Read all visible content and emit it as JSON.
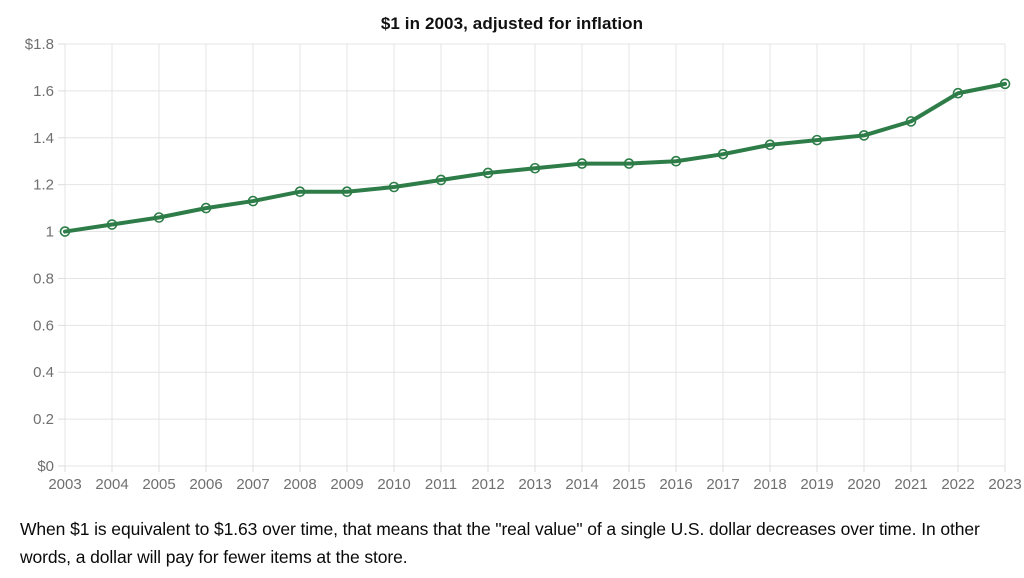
{
  "header": {
    "title": "$1 in 2003, adjusted for inflation"
  },
  "caption": "When $1 is equivalent to $1.63 over time, that means that the \"real value\" of a single U.S. dollar decreases over time. In other words, a dollar will pay for fewer items at the store.",
  "colors": {
    "line": "#2e7d49",
    "marker_fill": "#ffffff",
    "grid": "#e4e4e4",
    "tick": "#dcdcdc",
    "axis_label": "#6f6f6f",
    "title": "#111111",
    "caption": "#0a0a0a",
    "background": "#ffffff"
  },
  "chart_data": {
    "type": "line",
    "title": "$1 in 2003, adjusted for inflation",
    "x": [
      2003,
      2004,
      2005,
      2006,
      2007,
      2008,
      2009,
      2010,
      2011,
      2012,
      2013,
      2014,
      2015,
      2016,
      2017,
      2018,
      2019,
      2020,
      2021,
      2022,
      2023
    ],
    "values": [
      1.0,
      1.03,
      1.06,
      1.1,
      1.13,
      1.17,
      1.17,
      1.19,
      1.22,
      1.25,
      1.27,
      1.29,
      1.29,
      1.3,
      1.33,
      1.37,
      1.39,
      1.41,
      1.47,
      1.59,
      1.63
    ],
    "xlabel": "",
    "ylabel": "",
    "ylim": [
      0,
      1.8
    ],
    "y_ticks": [
      0,
      0.2,
      0.4,
      0.6,
      0.8,
      1.0,
      1.2,
      1.4,
      1.6,
      1.8
    ],
    "y_tick_labels": [
      "$0",
      "0.2",
      "0.4",
      "0.6",
      "0.8",
      "1",
      "1.2",
      "1.4",
      "1.6",
      "$1.8"
    ],
    "x_tick_labels": [
      "2003",
      "2004",
      "2005",
      "2006",
      "2007",
      "2008",
      "2009",
      "2010",
      "2011",
      "2012",
      "2013",
      "2014",
      "2015",
      "2016",
      "2017",
      "2018",
      "2019",
      "2020",
      "2021",
      "2022",
      "2023"
    ],
    "grid": true,
    "legend": "none",
    "marker": "circle"
  }
}
